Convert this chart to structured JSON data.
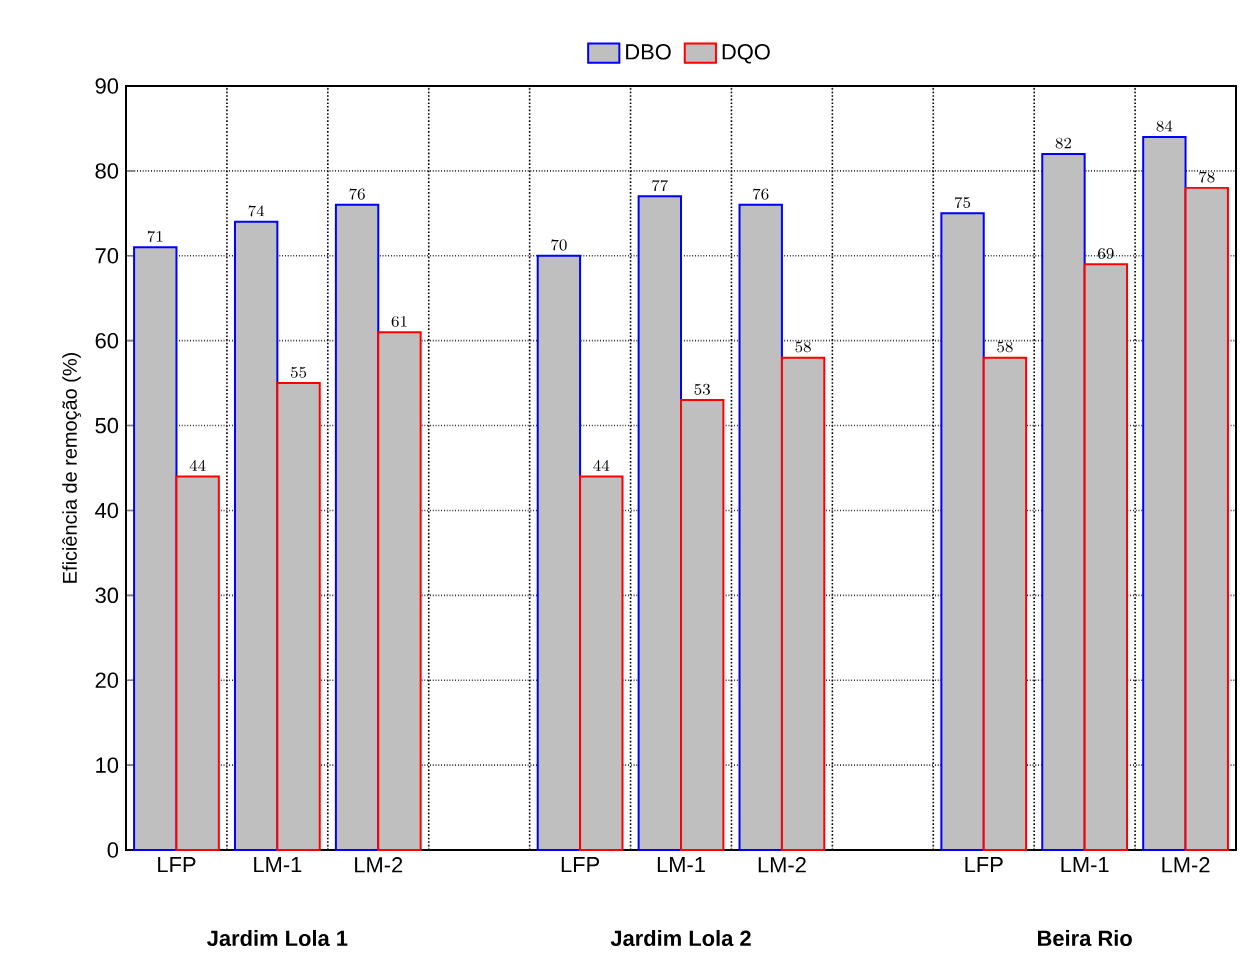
{
  "chart_data": {
    "type": "bar",
    "ylabel": "Eficiência de remoção (%)",
    "categories": [
      "LFP",
      "LM-1",
      "LM-2",
      null,
      "LFP",
      "LM-1",
      "LM-2",
      null,
      "LFP",
      "LM-1",
      "LM-2"
    ],
    "series": [
      {
        "name": "DBO",
        "color": "#0000ff",
        "values": [
          71,
          74,
          76,
          null,
          70,
          77,
          76,
          null,
          75,
          82,
          84
        ]
      },
      {
        "name": "DQO",
        "color": "#ff0000",
        "values": [
          44,
          55,
          61,
          null,
          44,
          53,
          58,
          null,
          58,
          69,
          78
        ]
      }
    ],
    "ylim": [
      0,
      90
    ],
    "yticks": [
      0,
      10,
      20,
      30,
      40,
      50,
      60,
      70,
      80,
      90
    ],
    "grid": true,
    "legend": "top",
    "data_labels": true,
    "annotations": [
      "Jardim Lola 1",
      "Jardim Lola 2",
      "Beira Rio"
    ]
  }
}
